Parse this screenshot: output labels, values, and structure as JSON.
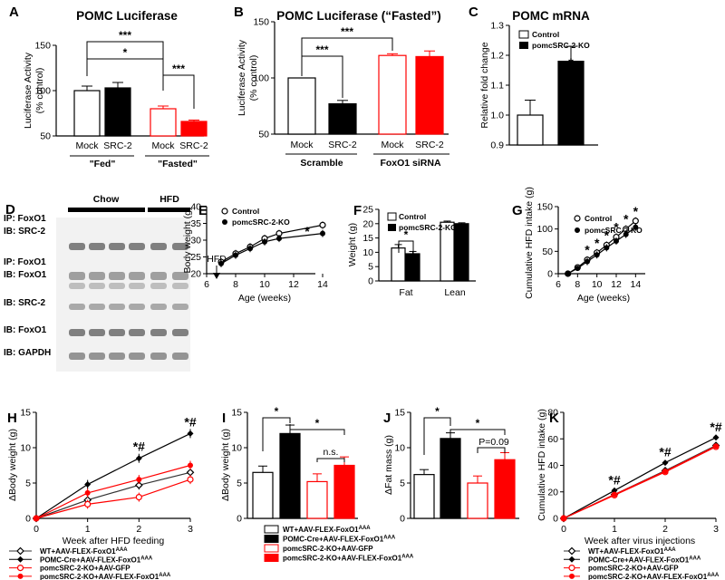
{
  "colors": {
    "black": "#000000",
    "red": "#ff0000",
    "white": "#ffffff",
    "grey": "#333333"
  },
  "chart_data": [
    {
      "id": "A",
      "type": "bar",
      "panel_label": "A",
      "title": "POMC Luciferase",
      "ylabel": "Luciferase Activity\n(% control)",
      "ylim": [
        50,
        150
      ],
      "yticks": [
        "50",
        "100",
        "150"
      ],
      "categories": [
        "Mock",
        "SRC-2",
        "Mock",
        "SRC-2"
      ],
      "values": [
        100,
        103,
        80,
        66
      ],
      "errors": [
        5,
        6,
        3,
        1.5
      ],
      "styles": [
        "white",
        "black",
        "redopen",
        "red"
      ],
      "groups": [
        "\"Fed\"",
        "\"Fasted\""
      ],
      "sig": [
        "***",
        "*",
        "***"
      ]
    },
    {
      "id": "B",
      "type": "bar",
      "panel_label": "B",
      "title": "POMC Luciferase (“Fasted”)",
      "ylabel": "Luciferase Activity\n(% control)",
      "ylim": [
        50,
        150
      ],
      "yticks": [
        "50",
        "100",
        "150"
      ],
      "categories": [
        "Mock",
        "SRC-2",
        "Mock",
        "SRC-2"
      ],
      "values": [
        100,
        77,
        120,
        119
      ],
      "errors": [
        0,
        3,
        1.5,
        5
      ],
      "styles": [
        "white",
        "black",
        "redopen",
        "red"
      ],
      "groups": [
        "Scramble",
        "FoxO1 siRNA"
      ],
      "sig": [
        "***",
        "***"
      ]
    },
    {
      "id": "C",
      "type": "bar",
      "panel_label": "C",
      "title": "POMC mRNA",
      "ylabel": "Relative fold change",
      "ylim": [
        0.9,
        1.3
      ],
      "yticks": [
        "0.9",
        "1.0",
        "1.1",
        "1.2",
        "1.3"
      ],
      "categories": [
        "Control",
        "pomcSRC-2-KO"
      ],
      "values": [
        1.0,
        1.18
      ],
      "errors": [
        0.05,
        0.05
      ],
      "legend": [
        "Control",
        "pomcSRC-2-KO"
      ],
      "sig": "*"
    },
    {
      "id": "E",
      "type": "line",
      "panel_label": "E",
      "xlabel": "Age (weeks)",
      "ylabel": "Body weight (g)",
      "xlim": [
        6,
        14
      ],
      "ylim": [
        20,
        40
      ],
      "xticks": [
        "6",
        "8",
        "10",
        "12",
        "14"
      ],
      "yticks": [
        "20",
        "25",
        "30",
        "35",
        "40"
      ],
      "annotation": "HFD",
      "legend": [
        "Control",
        "pomcSRC-2-KO"
      ],
      "series": [
        {
          "name": "Control",
          "x": [
            7,
            8,
            9,
            10,
            11,
            14
          ],
          "values": [
            23.5,
            26,
            28,
            30.5,
            32,
            34.5
          ]
        },
        {
          "name": "pomcSRC-2-KO",
          "x": [
            7,
            8,
            9,
            10,
            11,
            14
          ],
          "values": [
            23,
            25.5,
            27.5,
            29.5,
            30.5,
            32
          ]
        }
      ],
      "sig": "*"
    },
    {
      "id": "F",
      "type": "bar",
      "panel_label": "F",
      "ylabel": "Weight (g)",
      "ylim": [
        0,
        25
      ],
      "yticks": [
        "0",
        "5",
        "10",
        "15",
        "20",
        "25"
      ],
      "categories": [
        "Fat",
        "Lean"
      ],
      "legend": [
        "Control",
        "pomcSRC-2-KO"
      ],
      "series": [
        {
          "name": "Control",
          "values": [
            11.5,
            20.5
          ],
          "errors": [
            1.2,
            0.4
          ]
        },
        {
          "name": "pomcSRC-2-KO",
          "values": [
            9.5,
            20
          ],
          "errors": [
            0.8,
            0.3
          ]
        }
      ],
      "sig": "*"
    },
    {
      "id": "G",
      "type": "line",
      "panel_label": "G",
      "xlabel": "Age (weeks)",
      "ylabel": "Cumulative HFD intake (g)",
      "xlim": [
        6,
        15
      ],
      "ylim": [
        0,
        150
      ],
      "xticks": [
        "6",
        "8",
        "10",
        "12",
        "14"
      ],
      "yticks": [
        "0",
        "50",
        "100",
        "150"
      ],
      "legend": [
        "Control",
        "pomcSRC-2-KO"
      ],
      "series": [
        {
          "name": "Control",
          "x": [
            7,
            8,
            9,
            10,
            11,
            12,
            13,
            14
          ],
          "values": [
            0,
            14,
            31,
            47,
            64,
            82,
            100,
            118
          ]
        },
        {
          "name": "pomcSRC-2-KO",
          "x": [
            7,
            8,
            9,
            10,
            11,
            12,
            13,
            14
          ],
          "values": [
            0,
            12,
            27,
            42,
            58,
            73,
            88,
            104
          ]
        }
      ],
      "sig": "*"
    },
    {
      "id": "H",
      "type": "line",
      "panel_label": "H",
      "xlabel": "Week after HFD feeding",
      "ylabel": "ΔBody weight (g)",
      "xlim": [
        0,
        3
      ],
      "ylim": [
        0,
        15
      ],
      "xticks": [
        "0",
        "1",
        "2",
        "3"
      ],
      "yticks": [
        "0",
        "5",
        "10",
        "15"
      ],
      "series": [
        {
          "name": "WT+AAV-FLEX-FoxO1AAA",
          "x": [
            0,
            1,
            2,
            3
          ],
          "values": [
            0,
            2.6,
            4.7,
            6.5
          ]
        },
        {
          "name": "POMC-Cre+AAV-FLEX-FoxO1AAA",
          "x": [
            0,
            1,
            2,
            3
          ],
          "values": [
            0,
            4.8,
            8.5,
            12
          ]
        },
        {
          "name": "pomcSRC-2-KO+AAV-GFP",
          "x": [
            0,
            1,
            2,
            3
          ],
          "values": [
            0,
            2,
            3,
            5.5
          ]
        },
        {
          "name": "pomcSRC-2-KO+AAV-FLEX-FoxO1AAA",
          "x": [
            0,
            1,
            2,
            3
          ],
          "values": [
            0,
            3.6,
            5.5,
            7.5
          ]
        }
      ],
      "sig": "*#"
    },
    {
      "id": "I",
      "type": "bar",
      "panel_label": "I",
      "ylabel": "ΔBody weight (g)",
      "ylim": [
        0,
        15
      ],
      "yticks": [
        "0",
        "5",
        "10",
        "15"
      ],
      "categories": [
        "WT+AAV-FLEX-FoxO1AAA",
        "POMC-Cre+AAV-FLEX-FoxO1AAA",
        "pomcSRC-2-KO+AAV-GFP",
        "pomcSRC-2-KO+AAV-FLEX-FoxO1AAA"
      ],
      "values": [
        6.5,
        12,
        5.2,
        7.5
      ],
      "errors": [
        0.9,
        1.2,
        1.1,
        1.2
      ],
      "styles": [
        "white",
        "black",
        "redopen",
        "red"
      ],
      "sig": [
        "*",
        "*"
      ],
      "ns": "n.s."
    },
    {
      "id": "J",
      "type": "bar",
      "panel_label": "J",
      "ylabel": "ΔFat mass (g)",
      "ylim": [
        0,
        15
      ],
      "yticks": [
        "0",
        "5",
        "10",
        "15"
      ],
      "categories": [
        "WT+AAV-FLEX-FoxO1AAA",
        "POMC-Cre+AAV-FLEX-FoxO1AAA",
        "pomcSRC-2-KO+AAV-GFP",
        "pomcSRC-2-KO+AAV-FLEX-FoxO1AAA"
      ],
      "values": [
        6.2,
        11.3,
        5,
        8.3
      ],
      "errors": [
        0.7,
        0.8,
        1,
        1
      ],
      "styles": [
        "white",
        "black",
        "redopen",
        "red"
      ],
      "sig": [
        "*",
        "*"
      ],
      "pval": "P=0.09"
    },
    {
      "id": "K",
      "type": "line",
      "panel_label": "K",
      "xlabel": "Week after virus injections",
      "ylabel": "Cumulative HFD intake (g)",
      "xlim": [
        0,
        3
      ],
      "ylim": [
        0,
        80
      ],
      "xticks": [
        "0",
        "1",
        "2",
        "3"
      ],
      "yticks": [
        "0",
        "20",
        "40",
        "60",
        "80"
      ],
      "series": [
        {
          "name": "WT+AAV-FLEX-FoxO1AAA",
          "x": [
            0,
            1,
            2,
            3
          ],
          "values": [
            0,
            18,
            36,
            55
          ]
        },
        {
          "name": "POMC-Cre+AAV-FLEX-FoxO1AAA",
          "x": [
            0,
            1,
            2,
            3
          ],
          "values": [
            0,
            21,
            42,
            61
          ]
        },
        {
          "name": "pomcSRC-2-KO+AAV-GFP",
          "x": [
            0,
            1,
            2,
            3
          ],
          "values": [
            0,
            17.5,
            35,
            54
          ]
        },
        {
          "name": "pomcSRC-2-KO+AAV-FLEX-FoxO1AAA",
          "x": [
            0,
            1,
            2,
            3
          ],
          "values": [
            0,
            18,
            35.5,
            54.5
          ]
        }
      ],
      "sig": "*#"
    }
  ],
  "blot": {
    "panel_label": "D",
    "groups": [
      "Chow",
      "HFD"
    ],
    "rows": [
      {
        "l1": "IP: FoxO1",
        "l2": "IB: SRC-2"
      },
      {
        "l1": "IP: FoxO1",
        "l2": "IB: FoxO1"
      },
      {
        "l1": "IB: SRC-2",
        "l2": ""
      },
      {
        "l1": "IB: FoxO1",
        "l2": ""
      },
      {
        "l1": "IB: GAPDH",
        "l2": ""
      }
    ]
  },
  "bottom_legend": {
    "base": [
      "WT+AAV-FLEX-FoxO1",
      "POMC-Cre+AAV-FLEX-FoxO1",
      "pomcSRC-2-KO+AAV-GFP",
      "pomcSRC-2-KO+AAV-FLEX-FoxO1"
    ],
    "sup": [
      "AAA",
      "AAA",
      "",
      "AAA"
    ]
  }
}
